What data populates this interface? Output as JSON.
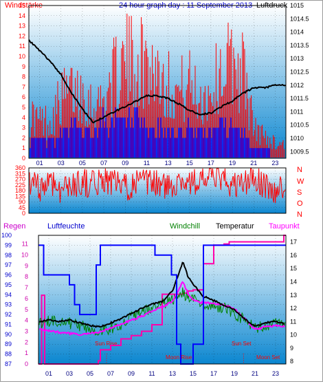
{
  "header": {
    "left_label": "Windstärke",
    "title": "24 hour graph day : 11 September 2013",
    "right_label": "Luftdruck"
  },
  "colors": {
    "plot_top": "#ffffff",
    "plot_bottom": "#0a86d0",
    "wind_red": "#ff0000",
    "wind_blue": "#0000ff",
    "pressure": "#000000",
    "humidity": "#0000ff",
    "windchill": "#008000",
    "temperature": "#000000",
    "dewpoint": "#ff00ff",
    "rain": "#ff00aa"
  },
  "chart_data": [
    {
      "id": "wind_pressure",
      "type": "line",
      "x_ticks": [
        "01",
        "03",
        "05",
        "07",
        "09",
        "11",
        "13",
        "15",
        "17",
        "19",
        "21",
        "23"
      ],
      "left_axis": {
        "label": "Windstärke",
        "ticks": [
          0,
          1,
          2,
          3,
          4,
          5,
          6,
          7,
          8,
          9,
          10,
          11,
          12,
          13,
          14,
          15
        ],
        "ylim": [
          0,
          15
        ]
      },
      "right_axis": {
        "label": "Luftdruck",
        "ticks": [
          1009.5,
          1010,
          1010.5,
          1011,
          1011.5,
          1012,
          1012.5,
          1013,
          1013.5,
          1014,
          1014.5,
          1015
        ],
        "ylim": [
          1009.25,
          1015
        ]
      },
      "series": [
        {
          "name": "Windstärke",
          "axis": "left",
          "kind": "gust_bars",
          "x": [
            0,
            1,
            2,
            3,
            4,
            5,
            6,
            7,
            8,
            9,
            10,
            11,
            12,
            13,
            14,
            15,
            16,
            17,
            18,
            19,
            20,
            21,
            22,
            23,
            24
          ],
          "values": [
            6,
            5,
            5,
            8,
            9,
            9,
            7,
            8,
            11,
            13,
            13,
            13,
            12,
            10,
            9,
            10,
            8,
            9,
            12,
            13,
            12,
            4,
            3,
            2,
            2
          ]
        },
        {
          "name": "Windrichtung",
          "axis": "left",
          "kind": "avg_bars",
          "x": [
            0,
            1,
            2,
            3,
            4,
            5,
            6,
            7,
            8,
            9,
            10,
            11,
            12,
            13,
            14,
            15,
            16,
            17,
            18,
            19,
            20,
            21,
            22,
            23,
            24
          ],
          "values": [
            2,
            2,
            2,
            3,
            4,
            3,
            3,
            4,
            4,
            4,
            4,
            3,
            3,
            3,
            3,
            3,
            3,
            3,
            4,
            3,
            3,
            1,
            1,
            0,
            0
          ]
        },
        {
          "name": "Luftdruck",
          "axis": "right",
          "kind": "line",
          "x": [
            0,
            1,
            2,
            3,
            4,
            5,
            6,
            7,
            8,
            9,
            10,
            11,
            12,
            13,
            14,
            15,
            16,
            17,
            18,
            19,
            20,
            21,
            22,
            23,
            24
          ],
          "values": [
            1013.7,
            1013.3,
            1012.9,
            1012.4,
            1011.7,
            1011.1,
            1010.6,
            1010.8,
            1011.0,
            1011.2,
            1011.4,
            1011.6,
            1011.6,
            1011.5,
            1011.3,
            1011.05,
            1010.9,
            1010.95,
            1011.2,
            1011.4,
            1011.7,
            1011.9,
            1011.9,
            1012.0,
            1012.0
          ]
        }
      ]
    },
    {
      "id": "wind_direction",
      "type": "line",
      "x_ticks": [
        "01",
        "03",
        "05",
        "07",
        "09",
        "11",
        "13",
        "15",
        "17",
        "19",
        "21",
        "23"
      ],
      "left_axis": {
        "ticks": [
          0,
          45,
          90,
          135,
          180,
          225,
          270,
          315,
          360
        ],
        "ylim": [
          0,
          360
        ]
      },
      "right_labels": [
        "N",
        "W",
        "S",
        "O",
        "N"
      ],
      "series": [
        {
          "name": "Windrichtung",
          "kind": "line",
          "x": [
            0,
            1,
            2,
            3,
            4,
            5,
            6,
            7,
            8,
            9,
            10,
            11,
            12,
            13,
            14,
            15,
            16,
            17,
            18,
            19,
            20,
            21,
            22,
            23,
            24
          ],
          "values": [
            240,
            200,
            260,
            190,
            220,
            250,
            230,
            270,
            240,
            200,
            250,
            230,
            240,
            200,
            270,
            240,
            260,
            300,
            280,
            210,
            240,
            270,
            230,
            150,
            260
          ]
        }
      ]
    },
    {
      "id": "temperature_humidity",
      "type": "line",
      "legend": [
        "Regen",
        "Luftfeuchte",
        "Windchill",
        "Temperatur",
        "Taupunkt"
      ],
      "x_ticks": [
        "01",
        "03",
        "05",
        "07",
        "09",
        "11",
        "13",
        "15",
        "17",
        "19",
        "21",
        "23"
      ],
      "left_outer_axis": {
        "label": "Luftfeuchte",
        "ticks": [
          87,
          88,
          89,
          90,
          91,
          92,
          93,
          94,
          95,
          96,
          97,
          98,
          99,
          100
        ],
        "ylim": [
          87,
          100
        ]
      },
      "left_inner_axis": {
        "label": "Regen",
        "ticks": [
          0,
          1,
          2,
          3,
          4,
          5,
          6,
          7,
          8,
          9,
          10,
          11
        ],
        "ylim": [
          0,
          11.8
        ]
      },
      "right_axis": {
        "label": "Temperatur",
        "ticks": [
          8,
          9,
          10,
          11,
          12,
          13,
          14,
          15,
          16,
          17
        ],
        "ylim": [
          7.8,
          17.5
        ]
      },
      "series": [
        {
          "name": "Luftfeuchte",
          "axis": "left_outer",
          "x": [
            0,
            0.5,
            1,
            2,
            3,
            3.5,
            4,
            5,
            5.6,
            6,
            7,
            8,
            9,
            10,
            11,
            11.3,
            12,
            12.9,
            13.4,
            13.8,
            14,
            14.6,
            15,
            16,
            17,
            18,
            19,
            20,
            21,
            22,
            23,
            24
          ],
          "values": [
            99,
            96,
            96,
            96,
            95,
            93,
            92,
            92,
            97,
            99,
            99,
            99,
            99,
            99,
            99,
            98,
            98,
            96,
            89,
            87,
            87,
            87,
            89,
            99,
            99,
            99,
            99,
            99,
            99,
            99,
            99,
            99
          ]
        },
        {
          "name": "Windchill",
          "axis": "right",
          "x": [
            0,
            1,
            2,
            3,
            4,
            5,
            6,
            7,
            8,
            9,
            10,
            11,
            12,
            13,
            14,
            14.5,
            15,
            16,
            17,
            18,
            19,
            20,
            21,
            22,
            23,
            24
          ],
          "values": [
            10.8,
            11,
            11.1,
            10.9,
            10.7,
            10.4,
            10.3,
            10.5,
            10.8,
            11.3,
            11.7,
            12,
            12.3,
            12.6,
            13.2,
            12.8,
            12.6,
            12.3,
            12.1,
            12.1,
            11.6,
            11.1,
            10.5,
            10.7,
            10.8,
            10.7
          ]
        },
        {
          "name": "Temperatur",
          "axis": "right",
          "x": [
            0,
            1,
            2,
            3,
            4,
            5,
            6,
            7,
            8,
            9,
            10,
            11,
            12,
            13,
            13.6,
            14,
            14.5,
            15,
            16,
            17,
            18,
            19,
            20,
            21,
            22,
            23,
            24
          ],
          "values": [
            11,
            11.1,
            11,
            11.1,
            10.9,
            10.7,
            10.6,
            10.9,
            11.2,
            11.6,
            12,
            12.3,
            12.5,
            13.3,
            14.6,
            15.5,
            14.4,
            13.8,
            12.9,
            12.6,
            12.2,
            11.9,
            11.2,
            10.6,
            10.9,
            11,
            10.8
          ]
        },
        {
          "name": "Taupunkt",
          "axis": "right",
          "x": [
            0,
            1,
            2,
            3,
            4,
            5,
            6,
            7,
            8,
            9,
            10,
            11,
            12,
            13,
            14,
            14.5,
            15,
            16,
            17,
            18,
            19,
            20,
            21,
            22,
            23,
            24
          ],
          "values": [
            10.4,
            10.3,
            10.2,
            10.1,
            10,
            10.1,
            10.2,
            10.5,
            10.8,
            11.1,
            11.4,
            11.8,
            12.1,
            12.5,
            14,
            13.1,
            12.6,
            12.4,
            12.4,
            12.2,
            12,
            11.2,
            10.4,
            10.6,
            10.7,
            10.6
          ]
        },
        {
          "name": "Regen",
          "axis": "left_inner",
          "x": [
            0,
            0.3,
            0.6,
            1,
            2,
            3,
            4,
            5,
            5.8,
            6,
            7,
            8,
            9,
            10,
            11,
            12,
            13,
            14,
            14.5,
            15,
            16,
            17,
            18,
            18.5,
            19,
            20,
            21,
            22,
            23,
            23.8,
            24
          ],
          "values": [
            0,
            6.3,
            0,
            0,
            0,
            0,
            0,
            0,
            0.3,
            1.3,
            1.7,
            2.3,
            2.6,
            3.0,
            3.6,
            6.4,
            6.4,
            6.5,
            6.7,
            6.8,
            9.2,
            10.9,
            11.0,
            11.2,
            11.2,
            11.2,
            11.2,
            11.2,
            11.2,
            11.8,
            11.8
          ]
        }
      ],
      "annotations": [
        "Sun Rise",
        "Moon Rise",
        "Sun Set",
        "Moon Set"
      ]
    }
  ]
}
